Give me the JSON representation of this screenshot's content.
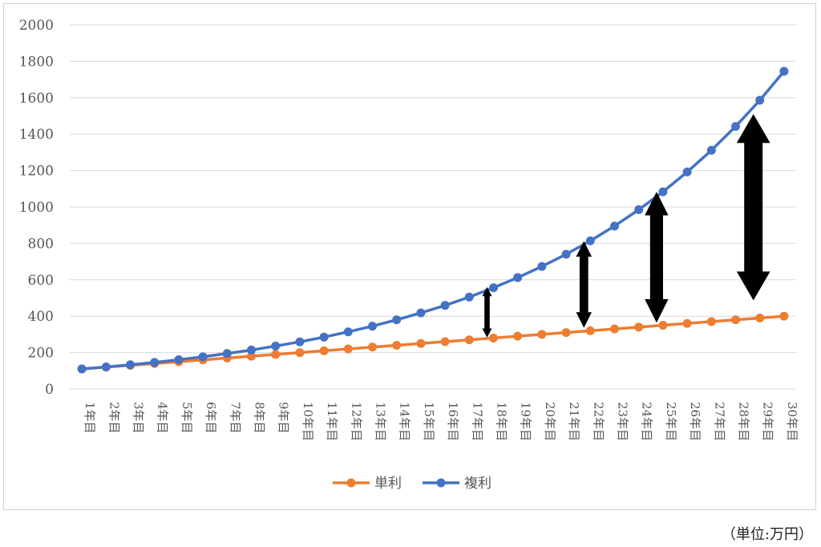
{
  "chart_data": {
    "type": "line",
    "categories": [
      "1年目",
      "2年目",
      "3年目",
      "4年目",
      "5年目",
      "6年目",
      "7年目",
      "8年目",
      "9年目",
      "10年目",
      "11年目",
      "12年目",
      "13年目",
      "14年目",
      "15年目",
      "16年目",
      "17年目",
      "18年目",
      "19年目",
      "20年目",
      "21年目",
      "22年目",
      "23年目",
      "24年目",
      "25年目",
      "26年目",
      "27年目",
      "28年目",
      "29年目",
      "30年目"
    ],
    "series": [
      {
        "name": "単利",
        "color": "#ED7D31",
        "values": [
          110,
          120,
          130,
          140,
          150,
          160,
          170,
          180,
          190,
          200,
          210,
          220,
          230,
          240,
          250,
          260,
          270,
          280,
          290,
          300,
          310,
          320,
          330,
          340,
          350,
          360,
          370,
          380,
          390,
          400
        ]
      },
      {
        "name": "複利",
        "color": "#4472C4",
        "values": [
          110,
          121,
          133,
          146,
          161,
          177,
          195,
          214,
          236,
          259,
          285,
          314,
          345,
          380,
          418,
          459,
          505,
          556,
          612,
          673,
          740,
          814,
          895,
          985,
          1083,
          1192,
          1311,
          1442,
          1586,
          1745
        ]
      }
    ],
    "y_ticks": [
      "0",
      "200",
      "400",
      "600",
      "800",
      "1000",
      "1200",
      "1400",
      "1600",
      "1800",
      "2000"
    ],
    "ylim": [
      0,
      2000
    ],
    "grid": true,
    "legend": "bottom",
    "annotations": [
      {
        "type": "double-arrow",
        "category": "18年目",
        "from": 283,
        "to": 560
      },
      {
        "type": "double-arrow",
        "category": "22年目",
        "from": 336,
        "to": 813
      },
      {
        "type": "double-arrow",
        "category": "25年目",
        "from": 364,
        "to": 1083
      },
      {
        "type": "double-arrow",
        "category": "29年目",
        "from": 487,
        "to": 1510
      }
    ]
  },
  "unit_note": "（単位:万円）"
}
